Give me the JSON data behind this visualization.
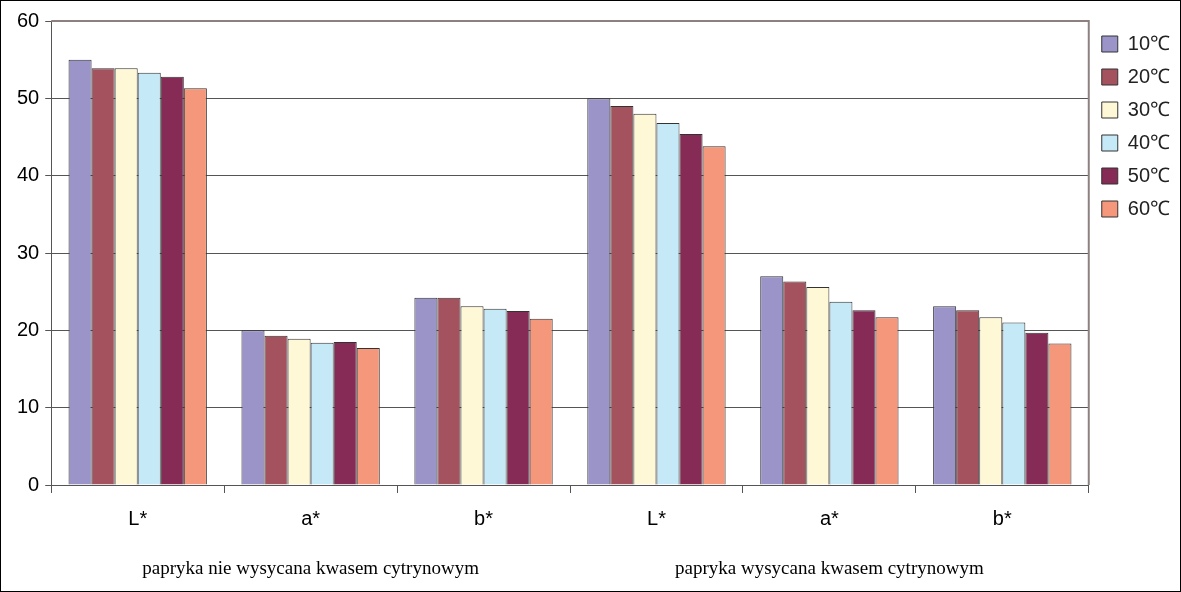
{
  "chart_data": {
    "type": "bar",
    "categories": [
      "L*",
      "a*",
      "b*",
      "L*",
      "a*",
      "b*"
    ],
    "series": [
      {
        "name": "10℃",
        "color": "#9b94c8",
        "values": [
          55.0,
          20.0,
          24.2,
          50.0,
          27.0,
          23.1
        ]
      },
      {
        "name": "20℃",
        "color": "#a5525f",
        "values": [
          53.9,
          19.3,
          24.2,
          49.0,
          26.3,
          22.6
        ]
      },
      {
        "name": "30℃",
        "color": "#fff8d6",
        "values": [
          53.9,
          18.9,
          23.1,
          48.0,
          25.6,
          21.7
        ]
      },
      {
        "name": "40℃",
        "color": "#c6e9f7",
        "values": [
          53.3,
          18.4,
          22.8,
          46.8,
          23.7,
          21.0
        ]
      },
      {
        "name": "50℃",
        "color": "#862b55",
        "values": [
          52.8,
          18.5,
          22.5,
          45.4,
          22.6,
          19.7
        ]
      },
      {
        "name": "60℃",
        "color": "#f5977a",
        "values": [
          51.3,
          17.7,
          21.5,
          43.8,
          21.7,
          18.3
        ]
      }
    ],
    "ylim": [
      0,
      60
    ],
    "yticks": [
      0,
      10,
      20,
      30,
      40,
      50,
      60
    ],
    "grid": "y",
    "legend": "right",
    "annotations": [
      "papryka nie wysycana kwasem cytrynowym",
      "papryka wysycana kwasem cytrynowym"
    ]
  }
}
